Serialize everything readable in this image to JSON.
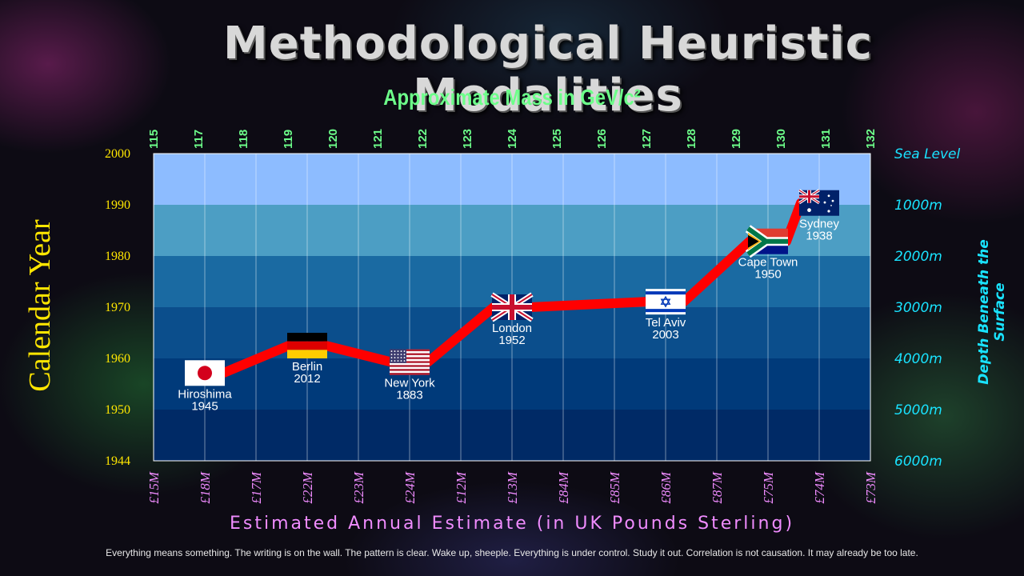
{
  "title": "Methodological Heuristic Modalities",
  "footer": "Everything means something. The writing is on the wall. The pattern is clear. Wake up, sheeple. Everything is under control. Study it out. Correlation is not causation. It may already be too late.",
  "colors": {
    "line": "#ff0000",
    "top_axis_text": "#6dff8a",
    "left_axis_text": "#ffe600",
    "right_axis_text": "#19e3ff",
    "bottom_axis_text": "#f08cff",
    "bands": [
      "#002a66",
      "#003a7a",
      "#0b4e8c",
      "#1a6aa2",
      "#4c9ec4",
      "#8dbcff"
    ]
  },
  "chart_data": {
    "type": "line",
    "title": "Methodological Heuristic Modalities",
    "xlabel": "Estimated Annual Estimate (in UK Pounds Sterling)",
    "ylabel": "Calendar Year",
    "x2label": "Approximate Mass in GeV/c²",
    "y2label": "Depth Beneath the Surface",
    "bottom_ticks": [
      "£15M",
      "£18M",
      "£17M",
      "£22M",
      "£23M",
      "£24M",
      "£12M",
      "£13M",
      "£84M",
      "£85M",
      "£86M",
      "£87M",
      "£75M",
      "£74M",
      "£73M"
    ],
    "top_ticks": [
      "115",
      "117",
      "118",
      "119",
      "120",
      "121",
      "122",
      "123",
      "124",
      "125",
      "126",
      "127",
      "128",
      "129",
      "130",
      "131",
      "132"
    ],
    "left_ticks": [
      "2000",
      "1990",
      "1980",
      "1970",
      "1960",
      "1950",
      "1944"
    ],
    "right_ticks": [
      "Sea Level",
      "1000m",
      "2000m",
      "3000m",
      "4000m",
      "5000m",
      "6000m"
    ],
    "ylim": [
      1944,
      2000
    ],
    "grid": true,
    "points": [
      {
        "city": "Hiroshima",
        "year_label": "1945",
        "flag": "japan-flag",
        "x_tick": "£18M",
        "y": 1960
      },
      {
        "city": "Berlin",
        "year_label": "2012",
        "flag": "germany-flag",
        "x_tick": "£22M",
        "y": 1965
      },
      {
        "city": "New York",
        "year_label": "1883",
        "flag": "usa-flag",
        "x_tick": "£24M",
        "y": 1962
      },
      {
        "city": "London",
        "year_label": "1952",
        "flag": "uk-flag",
        "x_tick": "£13M",
        "y": 1972
      },
      {
        "city": "Tel Aviv",
        "year_label": "2003",
        "flag": "israel-flag",
        "x_tick": "£86M",
        "y": 1973
      },
      {
        "city": "Cape Town",
        "year_label": "1950",
        "flag": "south-africa-flag",
        "x_tick": "£75M",
        "y": 1984
      },
      {
        "city": "Sydney",
        "year_label": "1938",
        "flag": "australia-flag",
        "x_tick": "£74M",
        "y": 1991
      }
    ]
  }
}
